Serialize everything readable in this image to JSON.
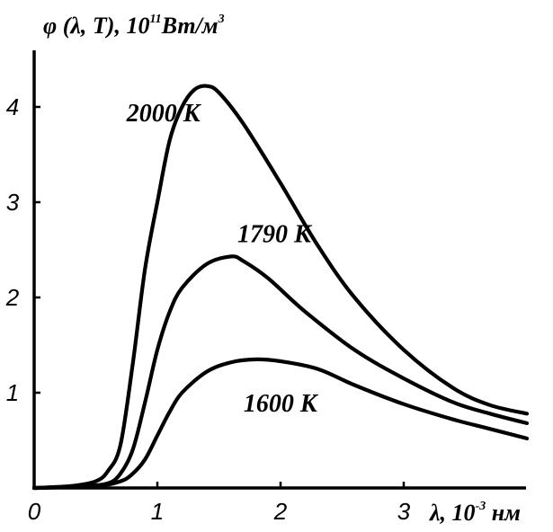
{
  "chart_data": {
    "type": "line",
    "ylabel": {
      "prefix": "φ (λ, T), 10",
      "exponent": "11",
      "unit": "Вт/м",
      "unit_exponent": "3"
    },
    "xlabel": {
      "prefix": "λ, 10",
      "exponent": "-3",
      "unit": " нм"
    },
    "xlim": [
      0,
      4.0
    ],
    "ylim": [
      0,
      4.75
    ],
    "x_ticks": [
      {
        "value": 0,
        "label": "0"
      },
      {
        "value": 1,
        "label": "1"
      },
      {
        "value": 2,
        "label": "2"
      },
      {
        "value": 3,
        "label": "3"
      }
    ],
    "y_ticks": [
      {
        "value": 1,
        "label": "1"
      },
      {
        "value": 2,
        "label": "2"
      },
      {
        "value": 3,
        "label": "3"
      },
      {
        "value": 4,
        "label": "4"
      }
    ],
    "grid": false,
    "series": [
      {
        "name": "2000 К",
        "points": [
          [
            0,
            0
          ],
          [
            0.3,
            0.02
          ],
          [
            0.5,
            0.07
          ],
          [
            0.6,
            0.18
          ],
          [
            0.7,
            0.45
          ],
          [
            0.8,
            1.3
          ],
          [
            0.9,
            2.3
          ],
          [
            1.0,
            3.0
          ],
          [
            1.1,
            3.65
          ],
          [
            1.2,
            4.0
          ],
          [
            1.3,
            4.18
          ],
          [
            1.4,
            4.22
          ],
          [
            1.5,
            4.15
          ],
          [
            1.7,
            3.82
          ],
          [
            2.0,
            3.2
          ],
          [
            2.3,
            2.55
          ],
          [
            2.6,
            2.0
          ],
          [
            3.0,
            1.45
          ],
          [
            3.4,
            1.05
          ],
          [
            3.7,
            0.87
          ],
          [
            4.0,
            0.78
          ]
        ]
      },
      {
        "name": "1790 К",
        "points": [
          [
            0,
            0
          ],
          [
            0.4,
            0.02
          ],
          [
            0.6,
            0.05
          ],
          [
            0.7,
            0.15
          ],
          [
            0.8,
            0.4
          ],
          [
            0.9,
            0.9
          ],
          [
            1.0,
            1.45
          ],
          [
            1.1,
            1.85
          ],
          [
            1.2,
            2.1
          ],
          [
            1.4,
            2.35
          ],
          [
            1.6,
            2.43
          ],
          [
            1.7,
            2.38
          ],
          [
            1.9,
            2.2
          ],
          [
            2.2,
            1.85
          ],
          [
            2.6,
            1.45
          ],
          [
            3.0,
            1.15
          ],
          [
            3.4,
            0.9
          ],
          [
            3.7,
            0.78
          ],
          [
            4.0,
            0.68
          ]
        ]
      },
      {
        "name": "1600 К",
        "points": [
          [
            0,
            0
          ],
          [
            0.5,
            0.02
          ],
          [
            0.7,
            0.07
          ],
          [
            0.8,
            0.15
          ],
          [
            0.9,
            0.3
          ],
          [
            1.0,
            0.55
          ],
          [
            1.1,
            0.8
          ],
          [
            1.2,
            1.0
          ],
          [
            1.4,
            1.22
          ],
          [
            1.6,
            1.32
          ],
          [
            1.8,
            1.35
          ],
          [
            2.0,
            1.33
          ],
          [
            2.3,
            1.25
          ],
          [
            2.6,
            1.08
          ],
          [
            3.0,
            0.88
          ],
          [
            3.4,
            0.72
          ],
          [
            3.7,
            0.62
          ],
          [
            4.0,
            0.52
          ]
        ]
      }
    ],
    "annotations": [
      {
        "text": "2000 К",
        "x": 0.75,
        "y": 3.85
      },
      {
        "text": "1790 К",
        "x": 1.65,
        "y": 2.58
      },
      {
        "text": "1600 К",
        "x": 1.7,
        "y": 0.8
      }
    ]
  }
}
